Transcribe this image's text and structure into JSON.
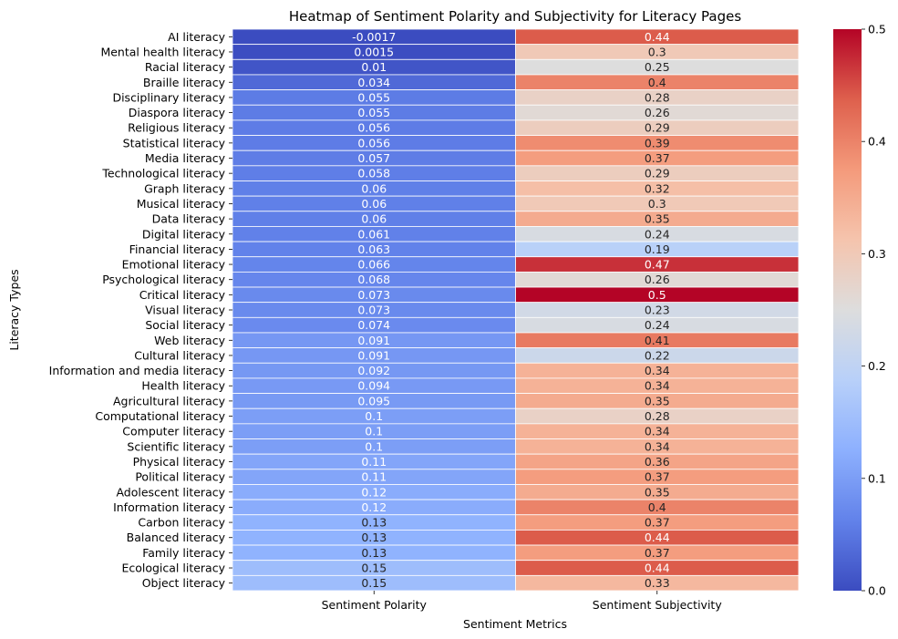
{
  "chart_data": {
    "type": "heatmap",
    "title": "Heatmap of Sentiment Polarity and Subjectivity for Literacy Pages",
    "xlabel": "Sentiment Metrics",
    "ylabel": "Literacy Types",
    "columns": [
      "Sentiment Polarity",
      "Sentiment Subjectivity"
    ],
    "rows": [
      "AI literacy",
      "Mental health literacy",
      "Racial literacy",
      "Braille literacy",
      "Disciplinary literacy",
      "Diaspora literacy",
      "Religious literacy",
      "Statistical literacy",
      "Media literacy",
      "Technological literacy",
      "Graph literacy",
      "Musical literacy",
      "Data literacy",
      "Digital literacy",
      "Financial literacy",
      "Emotional literacy",
      "Psychological literacy",
      "Critical literacy",
      "Visual literacy",
      "Social literacy",
      "Web literacy",
      "Cultural literacy",
      "Information and media literacy",
      "Health literacy",
      "Agricultural literacy",
      "Computational literacy",
      "Computer literacy",
      "Scientific literacy",
      "Physical literacy",
      "Political literacy",
      "Adolescent literacy",
      "Information literacy",
      "Carbon literacy",
      "Balanced literacy",
      "Family literacy",
      "Ecological literacy",
      "Object literacy"
    ],
    "values": [
      [
        -0.0017,
        0.44
      ],
      [
        0.0015,
        0.3
      ],
      [
        0.01,
        0.25
      ],
      [
        0.034,
        0.4
      ],
      [
        0.055,
        0.28
      ],
      [
        0.055,
        0.26
      ],
      [
        0.056,
        0.29
      ],
      [
        0.056,
        0.39
      ],
      [
        0.057,
        0.37
      ],
      [
        0.058,
        0.29
      ],
      [
        0.06,
        0.32
      ],
      [
        0.06,
        0.3
      ],
      [
        0.06,
        0.35
      ],
      [
        0.061,
        0.24
      ],
      [
        0.063,
        0.19
      ],
      [
        0.066,
        0.47
      ],
      [
        0.068,
        0.26
      ],
      [
        0.073,
        0.5
      ],
      [
        0.073,
        0.23
      ],
      [
        0.074,
        0.24
      ],
      [
        0.091,
        0.41
      ],
      [
        0.091,
        0.22
      ],
      [
        0.092,
        0.34
      ],
      [
        0.094,
        0.34
      ],
      [
        0.095,
        0.35
      ],
      [
        0.1,
        0.28
      ],
      [
        0.1,
        0.34
      ],
      [
        0.1,
        0.34
      ],
      [
        0.11,
        0.36
      ],
      [
        0.11,
        0.37
      ],
      [
        0.12,
        0.35
      ],
      [
        0.12,
        0.4
      ],
      [
        0.13,
        0.37
      ],
      [
        0.13,
        0.44
      ],
      [
        0.13,
        0.37
      ],
      [
        0.15,
        0.44
      ],
      [
        0.15,
        0.33
      ]
    ],
    "labels": [
      [
        "-0.0017",
        "0.44"
      ],
      [
        "0.0015",
        "0.3"
      ],
      [
        "0.01",
        "0.25"
      ],
      [
        "0.034",
        "0.4"
      ],
      [
        "0.055",
        "0.28"
      ],
      [
        "0.055",
        "0.26"
      ],
      [
        "0.056",
        "0.29"
      ],
      [
        "0.056",
        "0.39"
      ],
      [
        "0.057",
        "0.37"
      ],
      [
        "0.058",
        "0.29"
      ],
      [
        "0.06",
        "0.32"
      ],
      [
        "0.06",
        "0.3"
      ],
      [
        "0.06",
        "0.35"
      ],
      [
        "0.061",
        "0.24"
      ],
      [
        "0.063",
        "0.19"
      ],
      [
        "0.066",
        "0.47"
      ],
      [
        "0.068",
        "0.26"
      ],
      [
        "0.073",
        "0.5"
      ],
      [
        "0.073",
        "0.23"
      ],
      [
        "0.074",
        "0.24"
      ],
      [
        "0.091",
        "0.41"
      ],
      [
        "0.091",
        "0.22"
      ],
      [
        "0.092",
        "0.34"
      ],
      [
        "0.094",
        "0.34"
      ],
      [
        "0.095",
        "0.35"
      ],
      [
        "0.1",
        "0.28"
      ],
      [
        "0.1",
        "0.34"
      ],
      [
        "0.1",
        "0.34"
      ],
      [
        "0.11",
        "0.36"
      ],
      [
        "0.11",
        "0.37"
      ],
      [
        "0.12",
        "0.35"
      ],
      [
        "0.12",
        "0.4"
      ],
      [
        "0.13",
        "0.37"
      ],
      [
        "0.13",
        "0.44"
      ],
      [
        "0.13",
        "0.37"
      ],
      [
        "0.15",
        "0.44"
      ],
      [
        "0.15",
        "0.33"
      ]
    ],
    "colorscale": "coolwarm",
    "vmin": 0.0,
    "vmax": 0.5,
    "colorbar_ticks": [
      "0.0",
      "0.1",
      "0.2",
      "0.3",
      "0.4",
      "0.5"
    ],
    "colorbar_tick_values": [
      0.0,
      0.1,
      0.2,
      0.3,
      0.4,
      0.5
    ],
    "grid": true
  }
}
